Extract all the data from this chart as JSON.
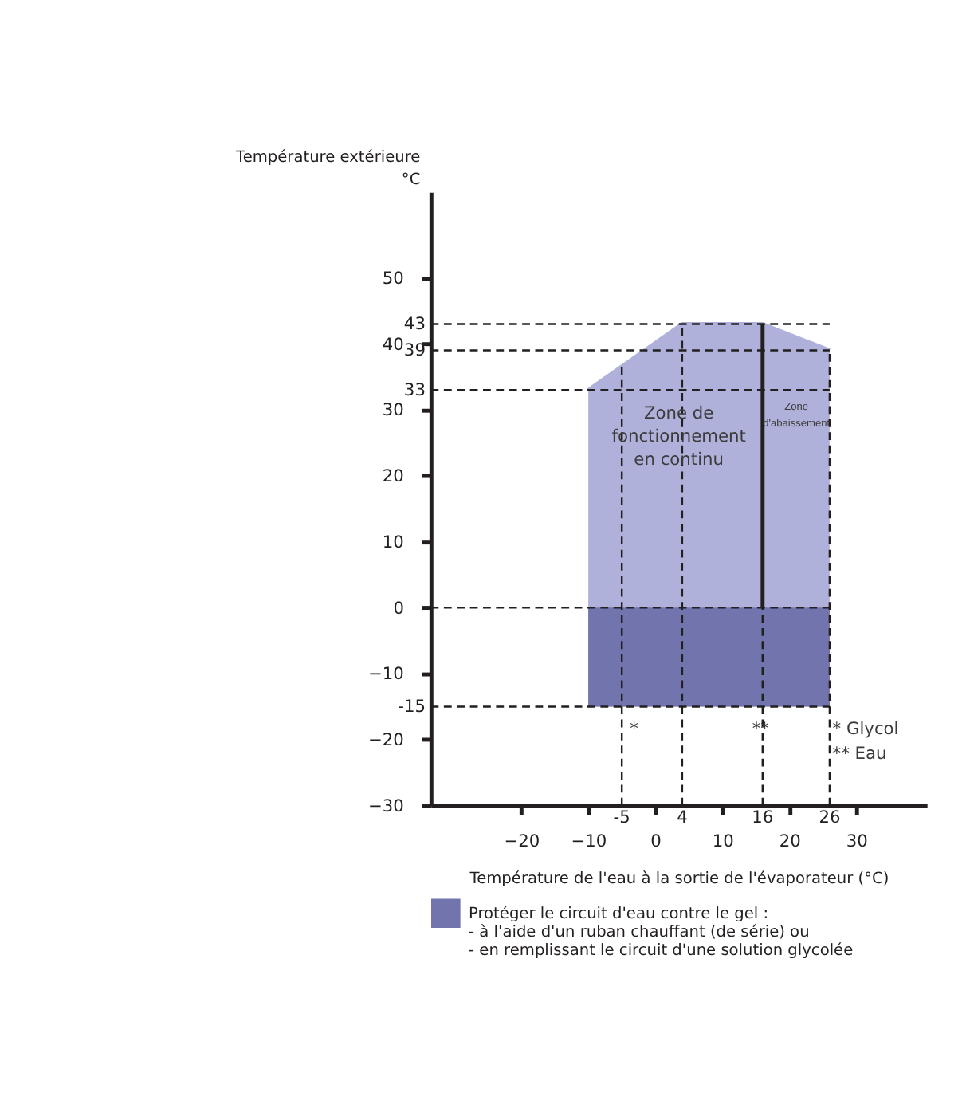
{
  "chart_data": {
    "type": "line",
    "ylabel": "Température extérieure\n°C",
    "xlabel": "Température de l'eau à la sortie de l'évaporateur (°C)",
    "xlim": [
      -33.5,
      40.5
    ],
    "ylim": [
      -30,
      63
    ],
    "xticks": [
      -20,
      -10,
      0,
      10,
      20,
      30
    ],
    "yticks": [
      -30,
      -20,
      -10,
      0,
      10,
      20,
      30,
      40,
      50
    ],
    "series": [
      {
        "color": "#afb1da",
        "x": [
          -10,
          4,
          16,
          26
        ],
        "values": [
          33,
          43,
          43,
          39
        ],
        "lower": [
          -15,
          -15,
          -15,
          -15
        ],
        "upper": [
          33,
          43,
          43,
          39
        ]
      },
      {
        "color": "#231f20",
        "x": [
          16,
          16
        ],
        "values": [
          -15,
          43
        ]
      }
    ],
    "bands": [
      {
        "axis": "y",
        "from": -15,
        "to": 0,
        "color": "#7274ae",
        "label": "Protéger le circuit d'eau contre le gel :\n- à l'aide d'un ruban chauffant (de série) ou\n- en remplissant le circuit d'une solution glycolée"
      }
    ],
    "ref_lines": [
      {
        "axis": "y",
        "value": 43,
        "label": "43",
        "color": "#231f20",
        "line_style": "dashed"
      },
      {
        "axis": "y",
        "value": 39,
        "label": "39",
        "color": "#231f20",
        "line_style": "dashed"
      },
      {
        "axis": "y",
        "value": 33,
        "label": "33",
        "color": "#231f20",
        "line_style": "dashed"
      },
      {
        "axis": "y",
        "value": 0,
        "color": "#231f20",
        "line_style": "dashed"
      },
      {
        "axis": "y",
        "value": -15,
        "label": "-15",
        "color": "#231f20",
        "line_style": "dashed"
      },
      {
        "axis": "x",
        "value": -5,
        "label": "-5",
        "color": "#231f20",
        "line_style": "dashed"
      },
      {
        "axis": "x",
        "value": 4,
        "label": "4",
        "color": "#231f20",
        "line_style": "dashed"
      },
      {
        "axis": "x",
        "value": 16,
        "label": "16",
        "color": "#231f20",
        "line_style": "dashed"
      },
      {
        "axis": "x",
        "value": 26,
        "label": "26",
        "color": "#231f20",
        "line_style": "dashed"
      }
    ],
    "annotations": [
      "Zone de\nfonctionnement\nen continu",
      "Zone\nd'abaissement",
      "*",
      "**",
      "* Glycol",
      "** Eau"
    ],
    "legend": "bottom",
    "grid": false
  }
}
